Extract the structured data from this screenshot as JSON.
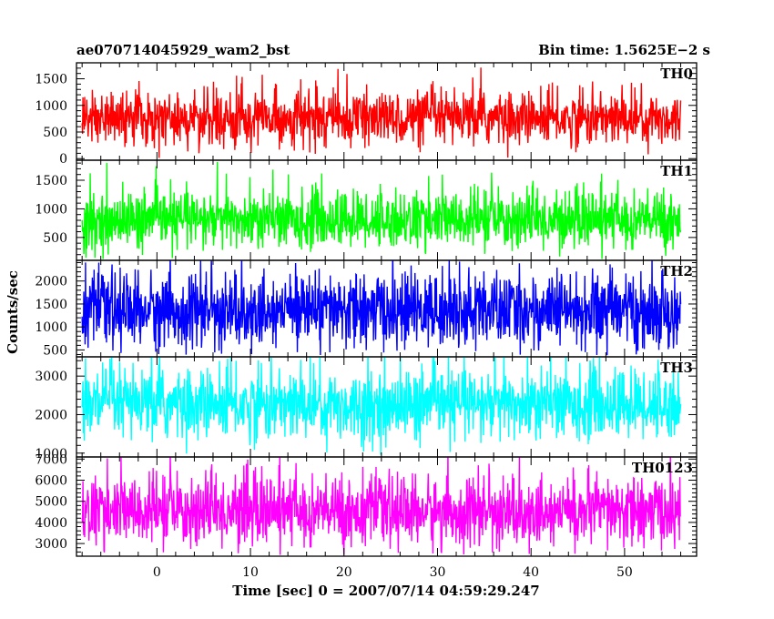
{
  "chart_data": {
    "type": "line",
    "header_left": "ae070714045929_wam2_bst",
    "header_right": "Bin time: 1.5625E−2 s",
    "xlabel": "Time [sec] 0 = 2007/07/14 04:59:29.247",
    "ylabel": "Counts/sec",
    "xlim": [
      -8.6,
      57.7
    ],
    "x_range_data": [
      -8,
      56
    ],
    "x_ticks": [
      0,
      10,
      20,
      30,
      40,
      50
    ],
    "x_tick_labels": [
      "0",
      "10",
      "20",
      "30",
      "40",
      "50"
    ],
    "grid": false,
    "panels": [
      {
        "label": "TH0",
        "color": "#ff0000",
        "ylim": [
          -30,
          1800
        ],
        "y_ticks": [
          0,
          500,
          1000,
          1500
        ],
        "y_tick_labels": [
          "0",
          "500",
          "1000",
          "1500"
        ],
        "mean": 750,
        "sigma": 260,
        "min_clip": 0
      },
      {
        "label": "TH1",
        "color": "#00ff00",
        "ylim": [
          100,
          1850
        ],
        "y_ticks": [
          500,
          1000,
          1500
        ],
        "y_tick_labels": [
          "500",
          "1000",
          "1500"
        ],
        "mean": 800,
        "sigma": 260,
        "min_clip": 120
      },
      {
        "label": "TH2",
        "color": "#0000ff",
        "ylim": [
          350,
          2450
        ],
        "y_ticks": [
          500,
          1000,
          1500,
          2000
        ],
        "y_tick_labels": [
          "500",
          "1000",
          "1500",
          "2000"
        ],
        "mean": 1350,
        "sigma": 420,
        "min_clip": 380
      },
      {
        "label": "TH3",
        "color": "#00ffff",
        "ylim": [
          900,
          3500
        ],
        "y_ticks": [
          1000,
          2000,
          3000
        ],
        "y_tick_labels": [
          "1000",
          "2000",
          "3000"
        ],
        "mean": 2250,
        "sigma": 480,
        "min_clip": 950
      },
      {
        "label": "TH0123",
        "color": "#ff00ff",
        "ylim": [
          2400,
          7100
        ],
        "y_ticks": [
          3000,
          4000,
          5000,
          6000,
          7000
        ],
        "y_tick_labels": [
          "3000",
          "4000",
          "5000",
          "6000",
          "7000"
        ],
        "mean": 4500,
        "sigma": 850,
        "min_clip": 2450
      }
    ]
  }
}
